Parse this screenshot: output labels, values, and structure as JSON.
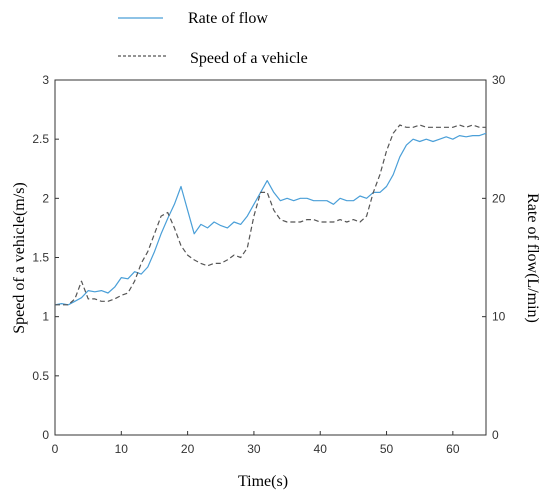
{
  "chart_data": {
    "type": "line",
    "xlabel": "Time(s)",
    "ylabel_left": "Speed of a vehicle(m/s)",
    "ylabel_right": "Rate of flow(L/min)",
    "xlim": [
      0,
      65
    ],
    "ylim_left": [
      0,
      3
    ],
    "ylim_right": [
      0,
      30
    ],
    "x_ticks": [
      "0",
      "10",
      "20",
      "30",
      "40",
      "50",
      "60"
    ],
    "y_left_ticks": [
      "0",
      "0.5",
      "1",
      "1.5",
      "2",
      "2.5",
      "3"
    ],
    "y_right_ticks": [
      "0",
      "10",
      "20",
      "30"
    ],
    "grid": false,
    "legend_position": "top",
    "series": [
      {
        "name": "Rate of flow",
        "axis": "right",
        "style": "solid",
        "color": "#4a9fd8",
        "x": [
          0,
          1,
          2,
          3,
          4,
          5,
          6,
          7,
          8,
          9,
          10,
          11,
          12,
          13,
          14,
          15,
          16,
          17,
          18,
          19,
          20,
          21,
          22,
          23,
          24,
          25,
          26,
          27,
          28,
          29,
          30,
          31,
          32,
          33,
          34,
          35,
          36,
          37,
          38,
          39,
          40,
          41,
          42,
          43,
          44,
          45,
          46,
          47,
          48,
          49,
          50,
          51,
          52,
          53,
          54,
          55,
          56,
          57,
          58,
          59,
          60,
          61,
          62,
          63,
          64,
          65
        ],
        "values": [
          11.0,
          11.1,
          11.0,
          11.3,
          11.6,
          12.2,
          12.1,
          12.2,
          12.0,
          12.5,
          13.3,
          13.2,
          13.8,
          13.6,
          14.2,
          15.5,
          17.0,
          18.3,
          19.5,
          21.0,
          19.0,
          17.0,
          17.8,
          17.5,
          18.0,
          17.7,
          17.5,
          18.0,
          17.8,
          18.5,
          19.5,
          20.5,
          21.5,
          20.5,
          19.8,
          20.0,
          19.8,
          20.0,
          20.0,
          19.8,
          19.8,
          19.8,
          19.5,
          20.0,
          19.8,
          19.8,
          20.2,
          20.0,
          20.5,
          20.5,
          21.0,
          22.0,
          23.5,
          24.5,
          25.0,
          24.8,
          25.0,
          24.8,
          25.0,
          25.2,
          25.0,
          25.3,
          25.2,
          25.3,
          25.3,
          25.5
        ]
      },
      {
        "name": "Speed of a vehicle",
        "axis": "left",
        "style": "dashed",
        "color": "#555555",
        "x": [
          0,
          1,
          2,
          3,
          4,
          5,
          6,
          7,
          8,
          9,
          10,
          11,
          12,
          13,
          14,
          15,
          16,
          17,
          18,
          19,
          20,
          21,
          22,
          23,
          24,
          25,
          26,
          27,
          28,
          29,
          30,
          31,
          32,
          33,
          34,
          35,
          36,
          37,
          38,
          39,
          40,
          41,
          42,
          43,
          44,
          45,
          46,
          47,
          48,
          49,
          50,
          51,
          52,
          53,
          54,
          55,
          56,
          57,
          58,
          59,
          60,
          61,
          62,
          63,
          64,
          65
        ],
        "values": [
          1.1,
          1.1,
          1.1,
          1.15,
          1.3,
          1.15,
          1.15,
          1.13,
          1.13,
          1.15,
          1.18,
          1.2,
          1.3,
          1.45,
          1.55,
          1.7,
          1.85,
          1.88,
          1.75,
          1.6,
          1.52,
          1.48,
          1.45,
          1.43,
          1.45,
          1.45,
          1.48,
          1.52,
          1.5,
          1.58,
          1.85,
          2.05,
          2.05,
          1.9,
          1.82,
          1.8,
          1.8,
          1.8,
          1.82,
          1.82,
          1.8,
          1.8,
          1.8,
          1.82,
          1.8,
          1.82,
          1.8,
          1.85,
          2.05,
          2.2,
          2.4,
          2.55,
          2.62,
          2.6,
          2.6,
          2.62,
          2.6,
          2.6,
          2.6,
          2.6,
          2.6,
          2.62,
          2.6,
          2.62,
          2.6,
          2.6
        ]
      }
    ]
  }
}
